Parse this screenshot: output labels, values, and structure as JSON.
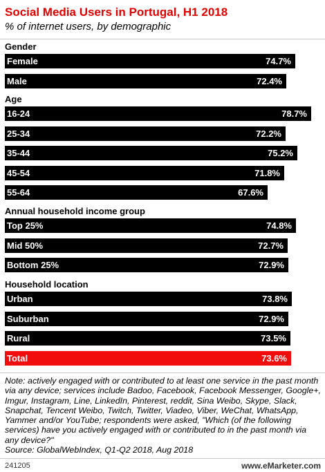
{
  "header": {
    "title": "Social Media Users in Portugal, H1 2018",
    "subtitle": "% of internet users, by demographic"
  },
  "chart_data": {
    "type": "bar",
    "orientation": "horizontal",
    "xlim": [
      0,
      80
    ],
    "groups": [
      {
        "name": "Gender",
        "items": [
          {
            "label": "Female",
            "value": 74.7,
            "value_label": "74.7%"
          },
          {
            "label": "Male",
            "value": 72.4,
            "value_label": "72.4%"
          }
        ]
      },
      {
        "name": "Age",
        "items": [
          {
            "label": "16-24",
            "value": 78.7,
            "value_label": "78.7%"
          },
          {
            "label": "25-34",
            "value": 72.2,
            "value_label": "72.2%"
          },
          {
            "label": "35-44",
            "value": 75.2,
            "value_label": "75.2%"
          },
          {
            "label": "45-54",
            "value": 71.8,
            "value_label": "71.8%"
          },
          {
            "label": "55-64",
            "value": 67.6,
            "value_label": "67.6%"
          }
        ]
      },
      {
        "name": "Annual household income group",
        "items": [
          {
            "label": "Top 25%",
            "value": 74.8,
            "value_label": "74.8%"
          },
          {
            "label": "Mid 50%",
            "value": 72.7,
            "value_label": "72.7%"
          },
          {
            "label": "Bottom 25%",
            "value": 72.9,
            "value_label": "72.9%"
          }
        ]
      },
      {
        "name": "Household location",
        "items": [
          {
            "label": "Urban",
            "value": 73.8,
            "value_label": "73.8%"
          },
          {
            "label": "Suburban",
            "value": 72.9,
            "value_label": "72.9%"
          },
          {
            "label": "Rural",
            "value": 73.5,
            "value_label": "73.5%"
          },
          {
            "label": "Total",
            "value": 73.6,
            "value_label": "73.6%",
            "highlight": true
          }
        ]
      }
    ]
  },
  "colors": {
    "title": "#e10000",
    "bar": "#000000",
    "total_bar": "#f20d0d"
  },
  "footer": {
    "note": "Note: actively engaged with or contributed to at least one service in the past month via any device; services include Badoo, Facebook, Facebook Messenger, Google+, Imgur, Instagram, Line, LinkedIn, Pinterest, reddit, Sina Weibo, Skype, Slack, Snapchat, Tencent Weibo, Twitch, Twitter, Viadeo, Viber, WeChat, WhatsApp, Yammer and/or YouTube; respondents were asked, \"Which (of the following services) have you actively engaged with or contributed to in the past month via any device?\"",
    "source": "Source: GlobalWebIndex, Q1-Q2 2018, Aug 2018",
    "chart_id": "241205",
    "brand": "www.eMarketer.com"
  }
}
